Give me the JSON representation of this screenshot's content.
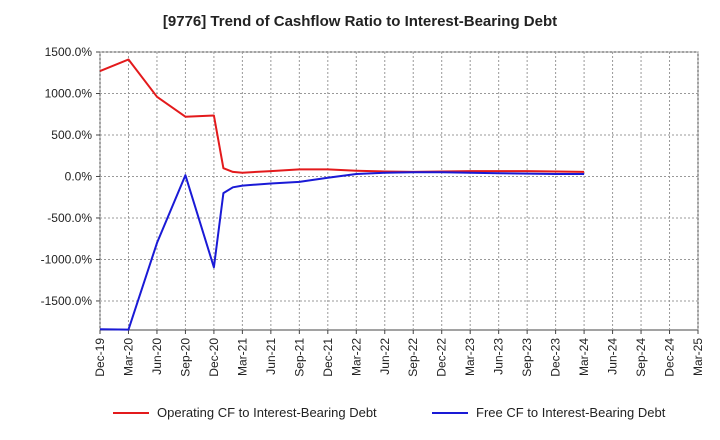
{
  "chart_data": {
    "type": "line",
    "title": "[9776]  Trend of Cashflow Ratio to Interest-Bearing Debt",
    "xlabel": "",
    "ylabel": "",
    "ylim": [
      -1850,
      1500
    ],
    "yticks": [
      1500,
      1000,
      500,
      0,
      -500,
      -1000,
      -1500
    ],
    "ytick_labels": [
      "1500.0%",
      "1000.0%",
      "500.0%",
      "0.0%",
      "-500.0%",
      "-1000.0%",
      "-1500.0%"
    ],
    "x_tick_labels": [
      "Dec-19",
      "Mar-20",
      "Jun-20",
      "Sep-20",
      "Dec-20",
      "Mar-21",
      "Jun-21",
      "Sep-21",
      "Dec-21",
      "Mar-22",
      "Jun-22",
      "Sep-22",
      "Dec-22",
      "Mar-23",
      "Jun-23",
      "Sep-23",
      "Dec-23",
      "Mar-24",
      "Jun-24",
      "Sep-24",
      "Dec-24",
      "Mar-25"
    ],
    "x": [
      "Dec-19",
      "Mar-20",
      "Jun-20",
      "Sep-20",
      "Dec-20",
      "Jan-21",
      "Feb-21",
      "Mar-21",
      "Jun-21",
      "Sep-21",
      "Dec-21",
      "Mar-22",
      "Jun-22",
      "Sep-22",
      "Dec-22",
      "Mar-23",
      "Jun-23",
      "Sep-23",
      "Dec-23",
      "Mar-24"
    ],
    "grid": true,
    "legend_position": "bottom",
    "series": [
      {
        "name": "Operating CF to Interest-Bearing Debt",
        "color": "#e31a1c",
        "values": [
          1270,
          1410,
          960,
          720,
          735,
          100,
          55,
          45,
          65,
          85,
          85,
          70,
          60,
          55,
          60,
          65,
          65,
          65,
          60,
          55
        ]
      },
      {
        "name": "Free CF to Interest-Bearing Debt",
        "color": "#1a1ad6",
        "values": [
          -1840,
          -1845,
          -800,
          15,
          -1095,
          -200,
          -130,
          -110,
          -85,
          -65,
          -15,
          30,
          45,
          50,
          50,
          45,
          40,
          35,
          30,
          30
        ]
      }
    ]
  }
}
